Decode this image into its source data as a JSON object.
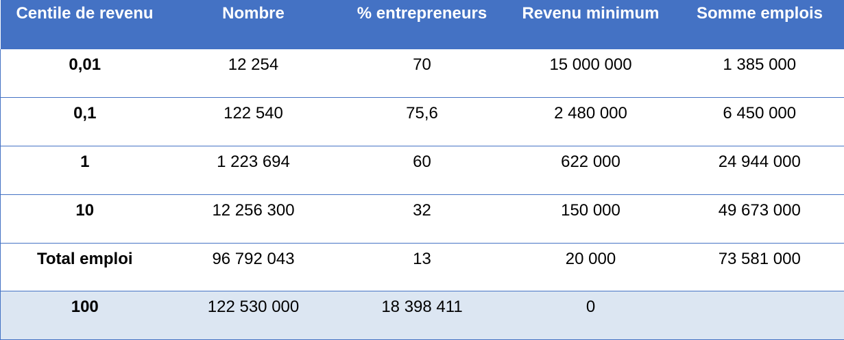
{
  "table": {
    "headers": [
      "Centile de revenu",
      "Nombre",
      "% entrepreneurs",
      "Revenu minimum",
      "Somme emplois"
    ],
    "rows": [
      [
        "0,01",
        "12 254",
        "70",
        "15 000 000",
        "1 385 000"
      ],
      [
        "0,1",
        "122 540",
        "75,6",
        "2 480 000",
        "6 450 000"
      ],
      [
        "1",
        "1 223 694",
        "60",
        "622 000",
        "24 944 000"
      ],
      [
        "10",
        "12 256 300",
        "32",
        "150 000",
        "49 673 000"
      ],
      [
        "Total emploi",
        "96 792 043",
        "13",
        "20 000",
        "73 581 000"
      ],
      [
        "100",
        "122 530 000",
        "18 398 411",
        "0",
        ""
      ]
    ]
  },
  "colors": {
    "header_bg": "#4472c4",
    "header_text": "#ffffff",
    "shaded_row": "#dce6f2",
    "border": "#4472c4"
  }
}
